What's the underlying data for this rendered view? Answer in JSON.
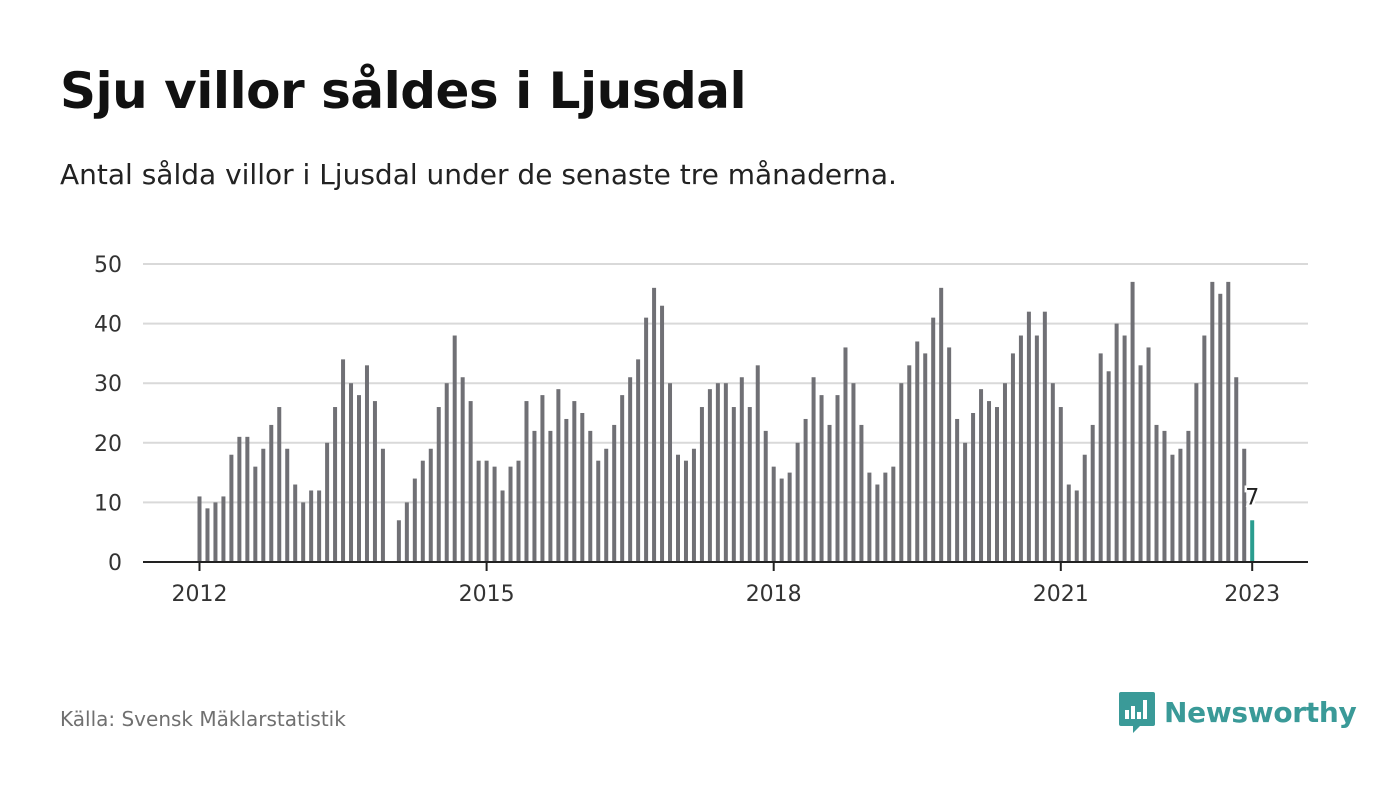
{
  "header": {
    "title": "Sju villor såldes i Ljusdal",
    "subtitle": "Antal sålda villor i Ljusdal under de senaste tre månaderna."
  },
  "footer": {
    "source": "Källa: Svensk Mäklarstatistik",
    "brand": "Newsworthy"
  },
  "colors": {
    "bar": "#707075",
    "highlight": "#2a9d8f",
    "grid": "#d9d9d9",
    "brand": "#3a9a98"
  },
  "chart_data": {
    "type": "bar",
    "title": "Sju villor såldes i Ljusdal",
    "subtitle": "Antal sålda villor i Ljusdal under de senaste tre månaderna.",
    "xlabel": "",
    "ylabel": "",
    "ylim": [
      0,
      50
    ],
    "yticks": [
      0,
      10,
      20,
      30,
      40,
      50
    ],
    "xtick_labels": [
      "2012",
      "2015",
      "2018",
      "2021",
      "2023"
    ],
    "grid": true,
    "highlight_label": "7",
    "values": [
      11,
      9,
      10,
      11,
      18,
      21,
      21,
      16,
      19,
      23,
      26,
      19,
      13,
      10,
      12,
      12,
      20,
      26,
      34,
      30,
      28,
      33,
      27,
      19,
      null,
      7,
      10,
      14,
      17,
      19,
      26,
      30,
      38,
      31,
      27,
      17,
      17,
      16,
      12,
      16,
      17,
      27,
      22,
      28,
      22,
      29,
      24,
      27,
      25,
      22,
      17,
      19,
      23,
      28,
      31,
      34,
      41,
      46,
      43,
      30,
      18,
      17,
      19,
      26,
      29,
      30,
      30,
      26,
      31,
      26,
      33,
      22,
      16,
      14,
      15,
      20,
      24,
      31,
      28,
      23,
      28,
      36,
      30,
      23,
      15,
      13,
      15,
      16,
      30,
      33,
      37,
      35,
      41,
      46,
      36,
      24,
      20,
      25,
      29,
      27,
      26,
      30,
      35,
      38,
      42,
      38,
      42,
      30,
      26,
      13,
      12,
      18,
      23,
      35,
      32,
      40,
      38,
      47,
      33,
      36,
      23,
      22,
      18,
      19,
      22,
      30,
      38,
      47,
      45,
      47,
      31,
      19,
      7
    ]
  }
}
